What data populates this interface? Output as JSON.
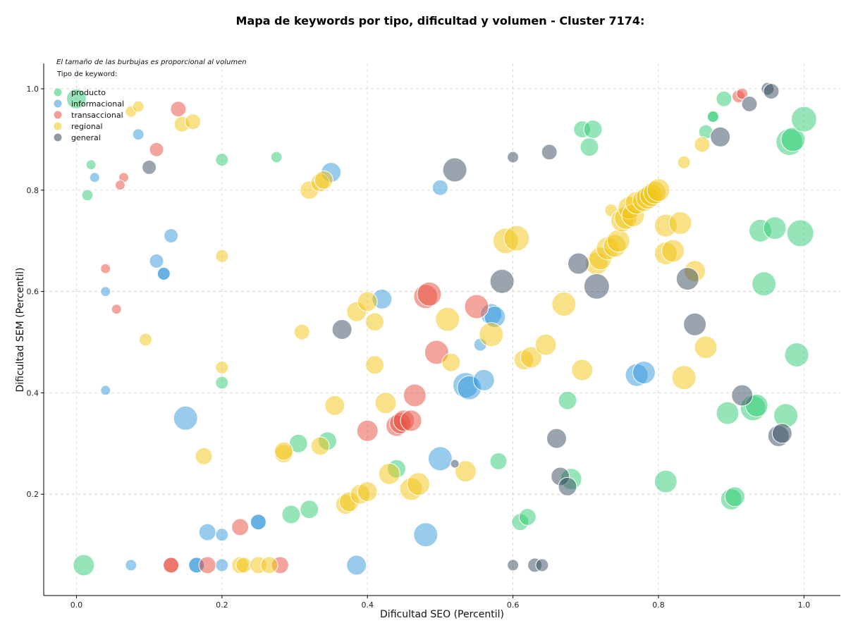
{
  "chart_data": {
    "type": "scatter",
    "title": "Mapa de keywords por tipo, dificultad y volumen - Cluster 7174:",
    "xlabel": "Dificultad SEO (Percentil)",
    "ylabel": "Dificultad SEM (Percentil)",
    "note": "El tamaño de las burbujas es proporcional al volumen",
    "legend_title": "Tipo de keyword:",
    "legend_position": "top-left",
    "grid": true,
    "xlim": [
      -0.045,
      1.05
    ],
    "ylim": [
      0.0,
      1.05
    ],
    "xticks": [
      "0.0",
      "0.2",
      "0.4",
      "0.6",
      "0.8",
      "1.0"
    ],
    "yticks": [
      "0.2",
      "0.4",
      "0.6",
      "0.8",
      "1.0"
    ],
    "series": [
      {
        "name": "producto",
        "color": "#2ecc71",
        "points": [
          [
            0.0,
            0.98,
            14
          ],
          [
            0.02,
            0.85,
            7
          ],
          [
            0.015,
            0.79,
            8
          ],
          [
            0.2,
            0.86,
            9
          ],
          [
            0.275,
            0.865,
            8
          ],
          [
            0.2,
            0.42,
            9
          ],
          [
            0.01,
            0.06,
            15
          ],
          [
            0.305,
            0.3,
            13
          ],
          [
            0.345,
            0.305,
            13
          ],
          [
            0.295,
            0.16,
            13
          ],
          [
            0.32,
            0.17,
            13
          ],
          [
            0.44,
            0.25,
            13
          ],
          [
            0.58,
            0.265,
            12
          ],
          [
            0.61,
            0.145,
            12
          ],
          [
            0.62,
            0.155,
            12
          ],
          [
            0.675,
            0.385,
            13
          ],
          [
            0.68,
            0.23,
            15
          ],
          [
            0.695,
            0.92,
            12
          ],
          [
            0.71,
            0.92,
            13
          ],
          [
            0.705,
            0.885,
            13
          ],
          [
            0.81,
            0.225,
            16
          ],
          [
            0.865,
            0.915,
            10
          ],
          [
            0.875,
            0.945,
            9
          ],
          [
            0.875,
            0.945,
            8
          ],
          [
            0.89,
            0.98,
            11
          ],
          [
            0.895,
            0.36,
            16
          ],
          [
            0.9,
            0.19,
            15
          ],
          [
            0.905,
            0.195,
            14
          ],
          [
            0.93,
            0.37,
            18
          ],
          [
            0.935,
            0.375,
            16
          ],
          [
            0.94,
            0.72,
            16
          ],
          [
            0.945,
            0.615,
            17
          ],
          [
            0.96,
            0.725,
            16
          ],
          [
            0.975,
            0.355,
            17
          ],
          [
            0.98,
            0.895,
            19
          ],
          [
            0.985,
            0.9,
            17
          ],
          [
            0.99,
            0.475,
            17
          ],
          [
            0.995,
            0.715,
            19
          ],
          [
            1.0,
            0.94,
            18
          ]
        ]
      },
      {
        "name": "informacional",
        "color": "#3498db",
        "points": [
          [
            0.025,
            0.825,
            7
          ],
          [
            0.085,
            0.91,
            8
          ],
          [
            0.13,
            0.71,
            10
          ],
          [
            0.11,
            0.66,
            10
          ],
          [
            0.12,
            0.635,
            10
          ],
          [
            0.12,
            0.635,
            9
          ],
          [
            0.04,
            0.6,
            7
          ],
          [
            0.04,
            0.405,
            7
          ],
          [
            0.15,
            0.35,
            17
          ],
          [
            0.18,
            0.125,
            12
          ],
          [
            0.2,
            0.12,
            9
          ],
          [
            0.25,
            0.145,
            11
          ],
          [
            0.25,
            0.145,
            11
          ],
          [
            0.075,
            0.06,
            8
          ],
          [
            0.165,
            0.06,
            11
          ],
          [
            0.165,
            0.06,
            11
          ],
          [
            0.2,
            0.06,
            9
          ],
          [
            0.35,
            0.835,
            14
          ],
          [
            0.385,
            0.06,
            14
          ],
          [
            0.42,
            0.585,
            14
          ],
          [
            0.48,
            0.12,
            17
          ],
          [
            0.5,
            0.27,
            17
          ],
          [
            0.5,
            0.805,
            11
          ],
          [
            0.535,
            0.415,
            18
          ],
          [
            0.54,
            0.41,
            17
          ],
          [
            0.555,
            0.495,
            9
          ],
          [
            0.56,
            0.425,
            15
          ],
          [
            0.57,
            0.555,
            15
          ],
          [
            0.575,
            0.55,
            15
          ],
          [
            0.77,
            0.435,
            16
          ],
          [
            0.78,
            0.44,
            16
          ]
        ]
      },
      {
        "name": "transaccional",
        "color": "#e74c3c",
        "points": [
          [
            0.065,
            0.825,
            7
          ],
          [
            0.06,
            0.81,
            7
          ],
          [
            0.04,
            0.645,
            7
          ],
          [
            0.055,
            0.565,
            7
          ],
          [
            0.11,
            0.88,
            10
          ],
          [
            0.14,
            0.96,
            11
          ],
          [
            0.13,
            0.06,
            11
          ],
          [
            0.13,
            0.06,
            11
          ],
          [
            0.18,
            0.06,
            12
          ],
          [
            0.225,
            0.135,
            12
          ],
          [
            0.28,
            0.06,
            12
          ],
          [
            0.4,
            0.325,
            15
          ],
          [
            0.44,
            0.335,
            15
          ],
          [
            0.445,
            0.34,
            15
          ],
          [
            0.45,
            0.345,
            15
          ],
          [
            0.46,
            0.345,
            15
          ],
          [
            0.465,
            0.395,
            16
          ],
          [
            0.48,
            0.59,
            17
          ],
          [
            0.485,
            0.595,
            17
          ],
          [
            0.495,
            0.48,
            17
          ],
          [
            0.55,
            0.57,
            17
          ],
          [
            0.91,
            0.985,
            9
          ],
          [
            0.915,
            0.99,
            8
          ]
        ]
      },
      {
        "name": "regional",
        "color": "#f1c40f",
        "points": [
          [
            0.075,
            0.955,
            8
          ],
          [
            0.085,
            0.965,
            8
          ],
          [
            0.145,
            0.93,
            11
          ],
          [
            0.16,
            0.935,
            11
          ],
          [
            0.095,
            0.505,
            9
          ],
          [
            0.2,
            0.67,
            9
          ],
          [
            0.2,
            0.45,
            9
          ],
          [
            0.175,
            0.275,
            12
          ],
          [
            0.285,
            0.28,
            13
          ],
          [
            0.285,
            0.285,
            13
          ],
          [
            0.225,
            0.06,
            12
          ],
          [
            0.23,
            0.06,
            11
          ],
          [
            0.25,
            0.06,
            12
          ],
          [
            0.265,
            0.06,
            12
          ],
          [
            0.31,
            0.52,
            11
          ],
          [
            0.32,
            0.8,
            13
          ],
          [
            0.335,
            0.815,
            13
          ],
          [
            0.34,
            0.82,
            13
          ],
          [
            0.335,
            0.295,
            13
          ],
          [
            0.355,
            0.375,
            14
          ],
          [
            0.37,
            0.18,
            14
          ],
          [
            0.375,
            0.185,
            14
          ],
          [
            0.39,
            0.2,
            14
          ],
          [
            0.4,
            0.205,
            14
          ],
          [
            0.385,
            0.56,
            14
          ],
          [
            0.4,
            0.58,
            14
          ],
          [
            0.41,
            0.54,
            13
          ],
          [
            0.41,
            0.455,
            13
          ],
          [
            0.425,
            0.38,
            15
          ],
          [
            0.43,
            0.24,
            15
          ],
          [
            0.46,
            0.21,
            16
          ],
          [
            0.47,
            0.22,
            16
          ],
          [
            0.51,
            0.545,
            17
          ],
          [
            0.515,
            0.46,
            13
          ],
          [
            0.535,
            0.245,
            15
          ],
          [
            0.57,
            0.515,
            17
          ],
          [
            0.59,
            0.7,
            18
          ],
          [
            0.605,
            0.705,
            18
          ],
          [
            0.615,
            0.465,
            14
          ],
          [
            0.625,
            0.47,
            15
          ],
          [
            0.645,
            0.495,
            15
          ],
          [
            0.67,
            0.575,
            17
          ],
          [
            0.695,
            0.445,
            15
          ],
          [
            0.715,
            0.655,
            16
          ],
          [
            0.72,
            0.665,
            16
          ],
          [
            0.73,
            0.685,
            16
          ],
          [
            0.735,
            0.76,
            9
          ],
          [
            0.74,
            0.69,
            16
          ],
          [
            0.745,
            0.7,
            16
          ],
          [
            0.75,
            0.74,
            16
          ],
          [
            0.755,
            0.745,
            16
          ],
          [
            0.76,
            0.765,
            16
          ],
          [
            0.765,
            0.75,
            16
          ],
          [
            0.77,
            0.775,
            16
          ],
          [
            0.78,
            0.78,
            16
          ],
          [
            0.785,
            0.785,
            16
          ],
          [
            0.79,
            0.79,
            16
          ],
          [
            0.795,
            0.795,
            16
          ],
          [
            0.8,
            0.8,
            16
          ],
          [
            0.81,
            0.675,
            16
          ],
          [
            0.81,
            0.73,
            16
          ],
          [
            0.82,
            0.68,
            16
          ],
          [
            0.83,
            0.735,
            16
          ],
          [
            0.835,
            0.855,
            9
          ],
          [
            0.835,
            0.43,
            17
          ],
          [
            0.85,
            0.64,
            15
          ],
          [
            0.86,
            0.89,
            11
          ],
          [
            0.865,
            0.49,
            16
          ]
        ]
      },
      {
        "name": "general",
        "color": "#34495e",
        "points": [
          [
            0.1,
            0.845,
            10
          ],
          [
            0.365,
            0.525,
            14
          ],
          [
            0.52,
            0.26,
            6
          ],
          [
            0.52,
            0.84,
            17
          ],
          [
            0.585,
            0.62,
            17
          ],
          [
            0.6,
            0.865,
            8
          ],
          [
            0.6,
            0.06,
            8
          ],
          [
            0.63,
            0.06,
            10
          ],
          [
            0.64,
            0.06,
            9
          ],
          [
            0.65,
            0.875,
            11
          ],
          [
            0.66,
            0.31,
            14
          ],
          [
            0.665,
            0.235,
            13
          ],
          [
            0.675,
            0.215,
            13
          ],
          [
            0.69,
            0.655,
            15
          ],
          [
            0.715,
            0.61,
            18
          ],
          [
            0.84,
            0.625,
            16
          ],
          [
            0.85,
            0.535,
            16
          ],
          [
            0.885,
            0.905,
            14
          ],
          [
            0.915,
            0.395,
            15
          ],
          [
            0.925,
            0.97,
            11
          ],
          [
            0.95,
            1.0,
            9
          ],
          [
            0.955,
            0.995,
            11
          ],
          [
            0.965,
            0.315,
            15
          ],
          [
            0.97,
            0.32,
            14
          ]
        ]
      }
    ]
  }
}
